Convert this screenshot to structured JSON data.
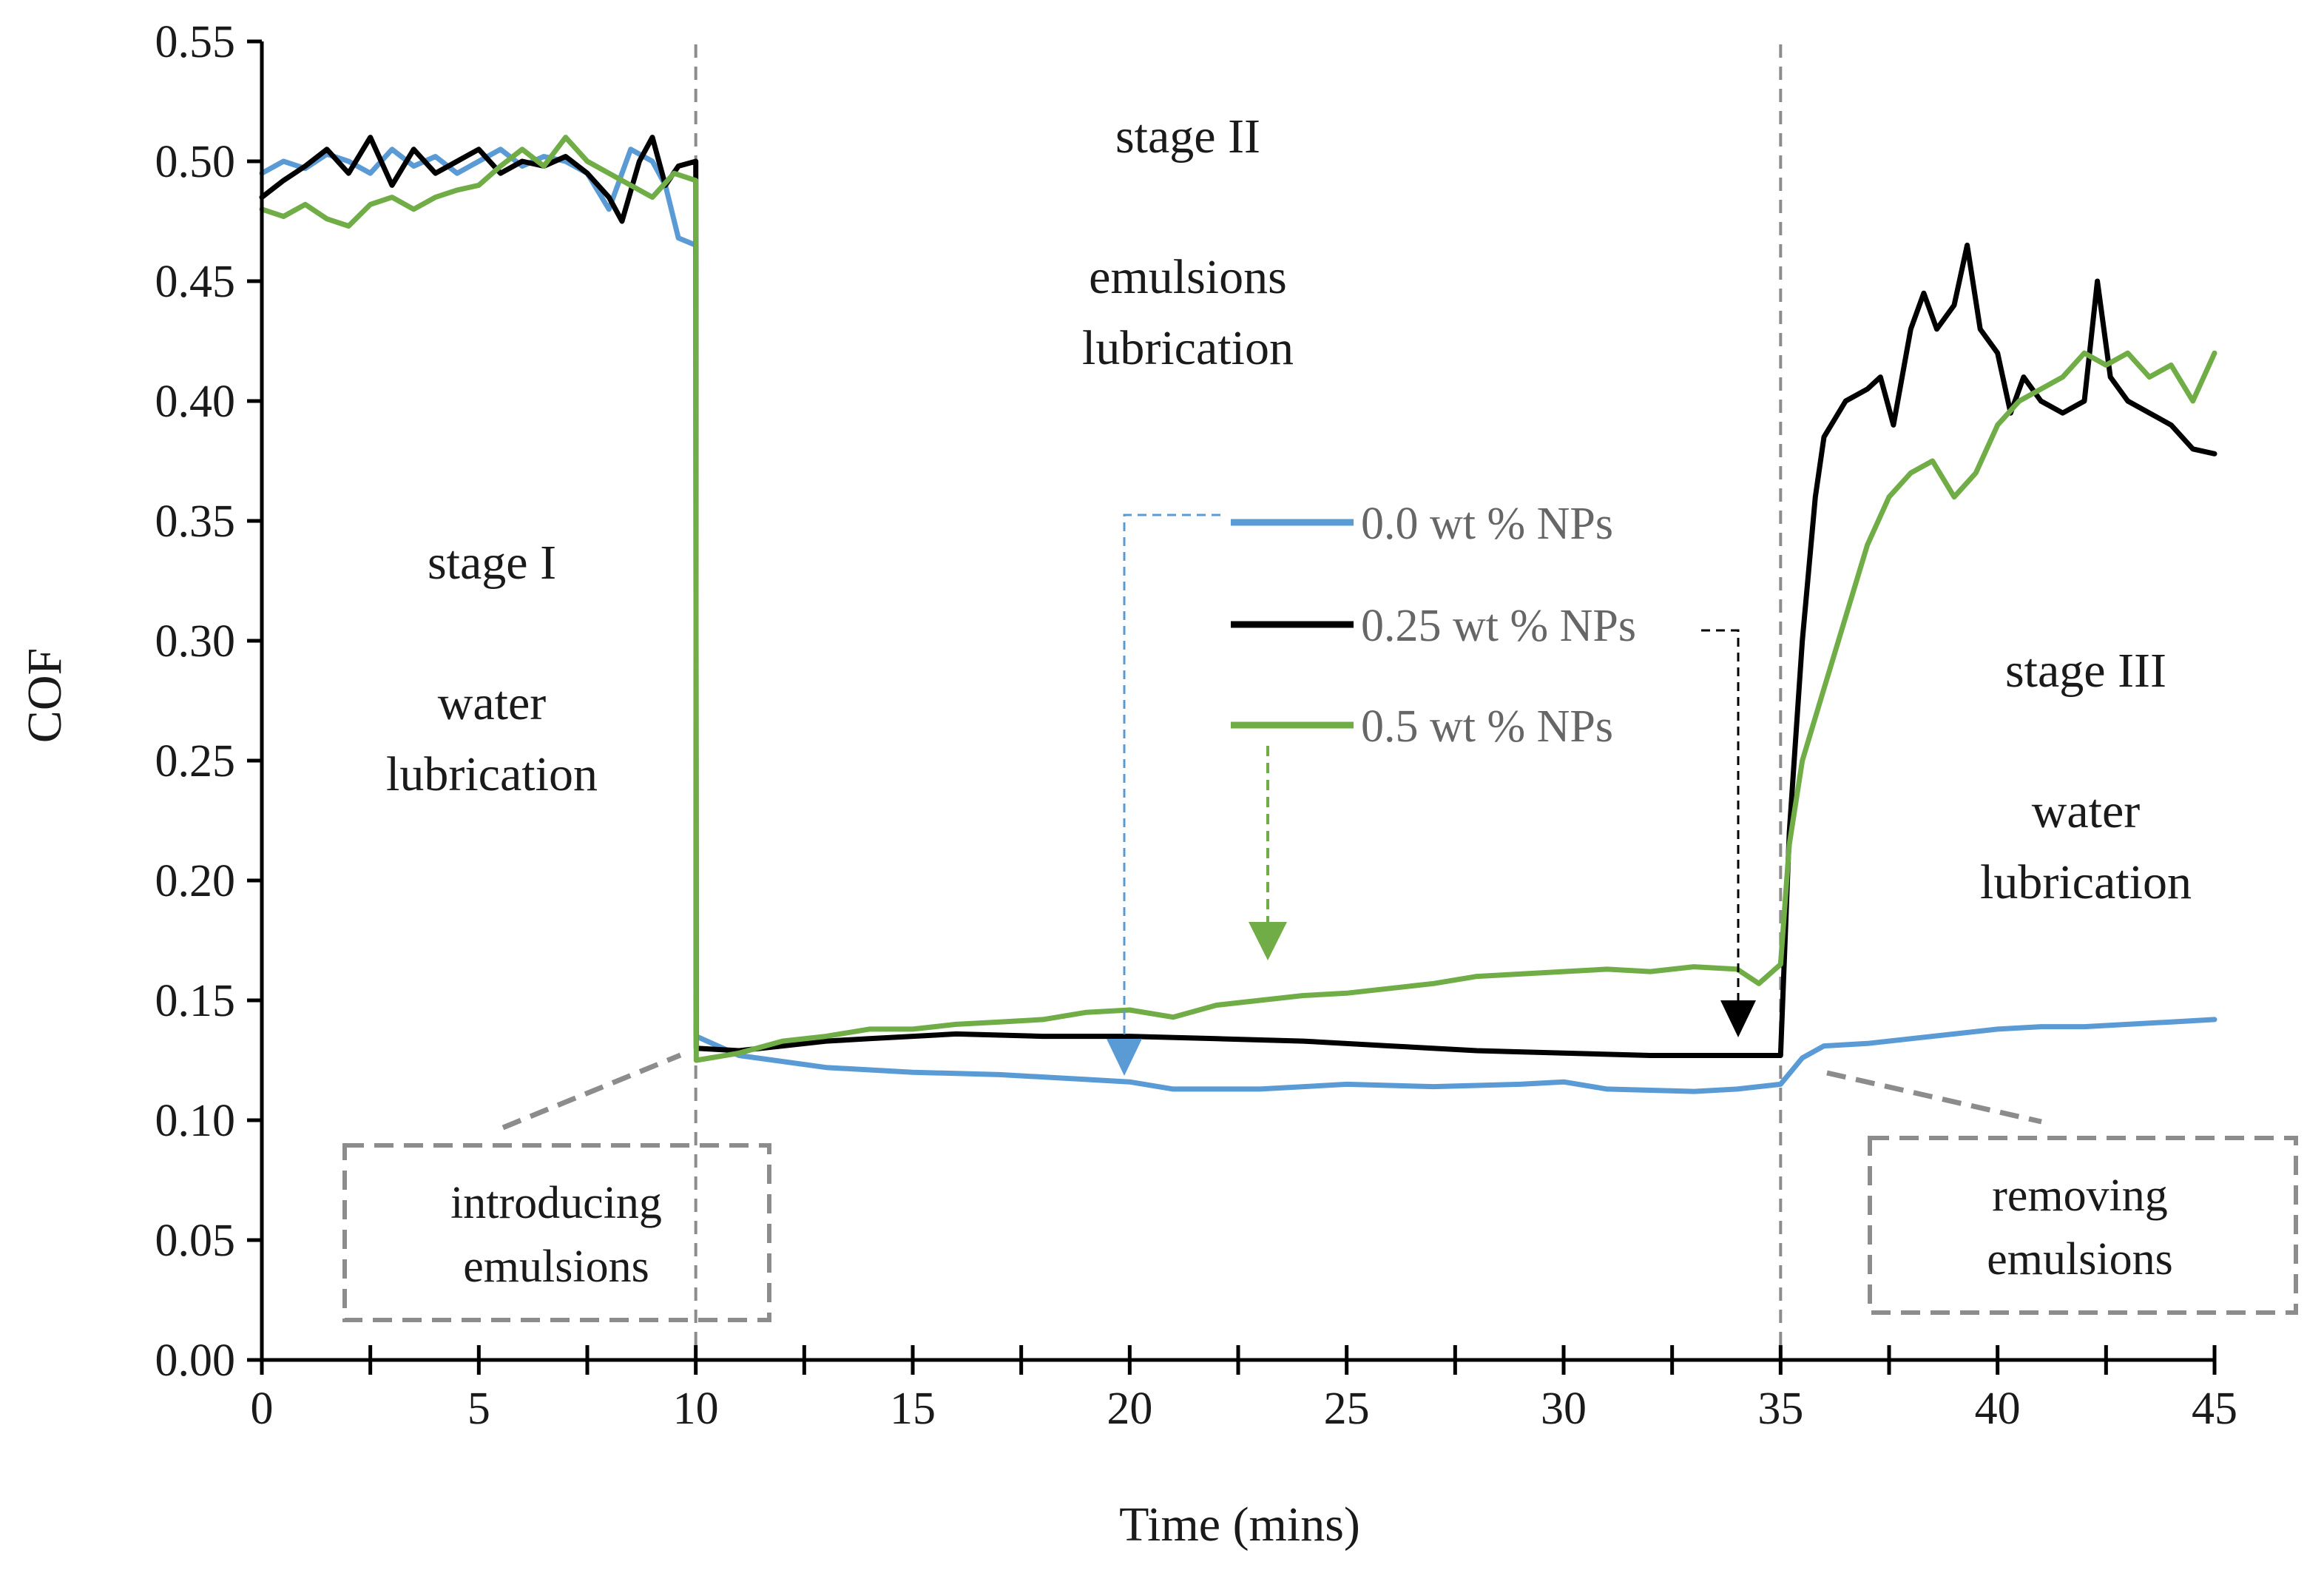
{
  "chart_data": {
    "type": "line",
    "xlabel": "Time (mins)",
    "ylabel": "COF",
    "xlim": [
      0,
      45
    ],
    "ylim": [
      0,
      0.55
    ],
    "x_ticks": [
      "0",
      "5",
      "10",
      "15",
      "20",
      "25",
      "30",
      "35",
      "40",
      "45"
    ],
    "y_ticks": [
      "0.00",
      "0.05",
      "0.10",
      "0.15",
      "0.20",
      "0.25",
      "0.30",
      "0.35",
      "0.40",
      "0.45",
      "0.50",
      "0.55"
    ],
    "grid": false,
    "legend_position": "center",
    "stage_dividers_x": [
      10,
      35
    ],
    "series": [
      {
        "name": "0.0 wt % NPs",
        "color": "#5b9bd5",
        "points": [
          [
            0,
            0.495
          ],
          [
            0.5,
            0.5
          ],
          [
            1,
            0.497
          ],
          [
            1.5,
            0.503
          ],
          [
            2,
            0.5
          ],
          [
            2.5,
            0.495
          ],
          [
            3,
            0.505
          ],
          [
            3.5,
            0.498
          ],
          [
            4,
            0.502
          ],
          [
            4.5,
            0.495
          ],
          [
            5,
            0.5
          ],
          [
            5.5,
            0.505
          ],
          [
            6,
            0.498
          ],
          [
            6.5,
            0.502
          ],
          [
            7,
            0.5
          ],
          [
            7.5,
            0.495
          ],
          [
            8,
            0.48
          ],
          [
            8.5,
            0.505
          ],
          [
            9,
            0.5
          ],
          [
            9.3,
            0.49
          ],
          [
            9.6,
            0.468
          ],
          [
            10,
            0.465
          ],
          [
            10.01,
            0.135
          ],
          [
            11,
            0.127
          ],
          [
            13,
            0.122
          ],
          [
            15,
            0.12
          ],
          [
            17,
            0.119
          ],
          [
            19,
            0.117
          ],
          [
            20,
            0.116
          ],
          [
            21,
            0.113
          ],
          [
            23,
            0.113
          ],
          [
            25,
            0.115
          ],
          [
            27,
            0.114
          ],
          [
            29,
            0.115
          ],
          [
            30,
            0.116
          ],
          [
            31,
            0.113
          ],
          [
            33,
            0.112
          ],
          [
            34,
            0.113
          ],
          [
            35,
            0.115
          ],
          [
            35.5,
            0.126
          ],
          [
            36,
            0.131
          ],
          [
            37,
            0.132
          ],
          [
            38,
            0.134
          ],
          [
            39,
            0.136
          ],
          [
            40,
            0.138
          ],
          [
            41,
            0.139
          ],
          [
            42,
            0.139
          ],
          [
            43,
            0.14
          ],
          [
            44,
            0.141
          ],
          [
            45,
            0.142
          ]
        ]
      },
      {
        "name": "0.25 wt % NPs",
        "color": "#000000",
        "points": [
          [
            0,
            0.485
          ],
          [
            0.5,
            0.492
          ],
          [
            1,
            0.498
          ],
          [
            1.5,
            0.505
          ],
          [
            2,
            0.495
          ],
          [
            2.5,
            0.51
          ],
          [
            3,
            0.49
          ],
          [
            3.5,
            0.505
          ],
          [
            4,
            0.495
          ],
          [
            4.5,
            0.5
          ],
          [
            5,
            0.505
          ],
          [
            5.5,
            0.495
          ],
          [
            6,
            0.5
          ],
          [
            6.5,
            0.498
          ],
          [
            7,
            0.502
          ],
          [
            7.5,
            0.495
          ],
          [
            8,
            0.485
          ],
          [
            8.3,
            0.475
          ],
          [
            8.7,
            0.5
          ],
          [
            9,
            0.51
          ],
          [
            9.3,
            0.49
          ],
          [
            9.6,
            0.498
          ],
          [
            10,
            0.5
          ],
          [
            10.01,
            0.13
          ],
          [
            11,
            0.129
          ],
          [
            12,
            0.131
          ],
          [
            13,
            0.133
          ],
          [
            14,
            0.134
          ],
          [
            15,
            0.135
          ],
          [
            16,
            0.136
          ],
          [
            18,
            0.135
          ],
          [
            20,
            0.135
          ],
          [
            22,
            0.134
          ],
          [
            24,
            0.133
          ],
          [
            26,
            0.131
          ],
          [
            28,
            0.129
          ],
          [
            30,
            0.128
          ],
          [
            32,
            0.127
          ],
          [
            34,
            0.127
          ],
          [
            35,
            0.127
          ],
          [
            35.2,
            0.22
          ],
          [
            35.5,
            0.3
          ],
          [
            35.8,
            0.36
          ],
          [
            36,
            0.385
          ],
          [
            36.5,
            0.4
          ],
          [
            37,
            0.405
          ],
          [
            37.3,
            0.41
          ],
          [
            37.6,
            0.39
          ],
          [
            38,
            0.43
          ],
          [
            38.3,
            0.445
          ],
          [
            38.6,
            0.43
          ],
          [
            39,
            0.44
          ],
          [
            39.3,
            0.465
          ],
          [
            39.6,
            0.43
          ],
          [
            40,
            0.42
          ],
          [
            40.3,
            0.395
          ],
          [
            40.6,
            0.41
          ],
          [
            41,
            0.4
          ],
          [
            41.5,
            0.395
          ],
          [
            42,
            0.4
          ],
          [
            42.3,
            0.45
          ],
          [
            42.6,
            0.41
          ],
          [
            43,
            0.4
          ],
          [
            43.5,
            0.395
          ],
          [
            44,
            0.39
          ],
          [
            44.5,
            0.38
          ],
          [
            45,
            0.378
          ]
        ]
      },
      {
        "name": "0.5 wt % NPs",
        "color": "#70ad47",
        "points": [
          [
            0,
            0.48
          ],
          [
            0.5,
            0.477
          ],
          [
            1,
            0.482
          ],
          [
            1.5,
            0.476
          ],
          [
            2,
            0.473
          ],
          [
            2.5,
            0.482
          ],
          [
            3,
            0.485
          ],
          [
            3.5,
            0.48
          ],
          [
            4,
            0.485
          ],
          [
            4.5,
            0.488
          ],
          [
            5,
            0.49
          ],
          [
            5.5,
            0.498
          ],
          [
            6,
            0.505
          ],
          [
            6.5,
            0.498
          ],
          [
            7,
            0.51
          ],
          [
            7.5,
            0.5
          ],
          [
            8,
            0.495
          ],
          [
            8.5,
            0.49
          ],
          [
            9,
            0.485
          ],
          [
            9.5,
            0.495
          ],
          [
            10,
            0.492
          ],
          [
            10.01,
            0.125
          ],
          [
            11,
            0.128
          ],
          [
            12,
            0.133
          ],
          [
            13,
            0.135
          ],
          [
            14,
            0.138
          ],
          [
            15,
            0.138
          ],
          [
            16,
            0.14
          ],
          [
            17,
            0.141
          ],
          [
            18,
            0.142
          ],
          [
            19,
            0.145
          ],
          [
            20,
            0.146
          ],
          [
            21,
            0.143
          ],
          [
            22,
            0.148
          ],
          [
            23,
            0.15
          ],
          [
            24,
            0.152
          ],
          [
            25,
            0.153
          ],
          [
            26,
            0.155
          ],
          [
            27,
            0.157
          ],
          [
            28,
            0.16
          ],
          [
            29,
            0.161
          ],
          [
            30,
            0.162
          ],
          [
            31,
            0.163
          ],
          [
            32,
            0.162
          ],
          [
            33,
            0.164
          ],
          [
            34,
            0.163
          ],
          [
            34.5,
            0.157
          ],
          [
            35,
            0.165
          ],
          [
            35.2,
            0.215
          ],
          [
            35.5,
            0.25
          ],
          [
            36,
            0.28
          ],
          [
            36.5,
            0.31
          ],
          [
            37,
            0.34
          ],
          [
            37.5,
            0.36
          ],
          [
            38,
            0.37
          ],
          [
            38.5,
            0.375
          ],
          [
            39,
            0.36
          ],
          [
            39.5,
            0.37
          ],
          [
            40,
            0.39
          ],
          [
            40.5,
            0.4
          ],
          [
            41,
            0.405
          ],
          [
            41.5,
            0.41
          ],
          [
            42,
            0.42
          ],
          [
            42.5,
            0.415
          ],
          [
            43,
            0.42
          ],
          [
            43.5,
            0.41
          ],
          [
            44,
            0.415
          ],
          [
            44.5,
            0.4
          ],
          [
            45,
            0.42
          ]
        ]
      }
    ],
    "annotations": [
      {
        "id": "stage1_title",
        "text": "stage I"
      },
      {
        "id": "stage1_desc_1",
        "text": "water"
      },
      {
        "id": "stage1_desc_2",
        "text": "lubrication"
      },
      {
        "id": "stage2_title",
        "text": "stage II"
      },
      {
        "id": "stage2_desc_1",
        "text": "emulsions"
      },
      {
        "id": "stage2_desc_2",
        "text": "lubrication"
      },
      {
        "id": "stage3_title",
        "text": "stage III"
      },
      {
        "id": "stage3_desc_1",
        "text": "water"
      },
      {
        "id": "stage3_desc_2",
        "text": "lubrication"
      },
      {
        "id": "introduce_1",
        "text": "introducing"
      },
      {
        "id": "introduce_2",
        "text": "emulsions"
      },
      {
        "id": "remove_1",
        "text": "removing"
      },
      {
        "id": "remove_2",
        "text": "emulsions"
      }
    ]
  }
}
